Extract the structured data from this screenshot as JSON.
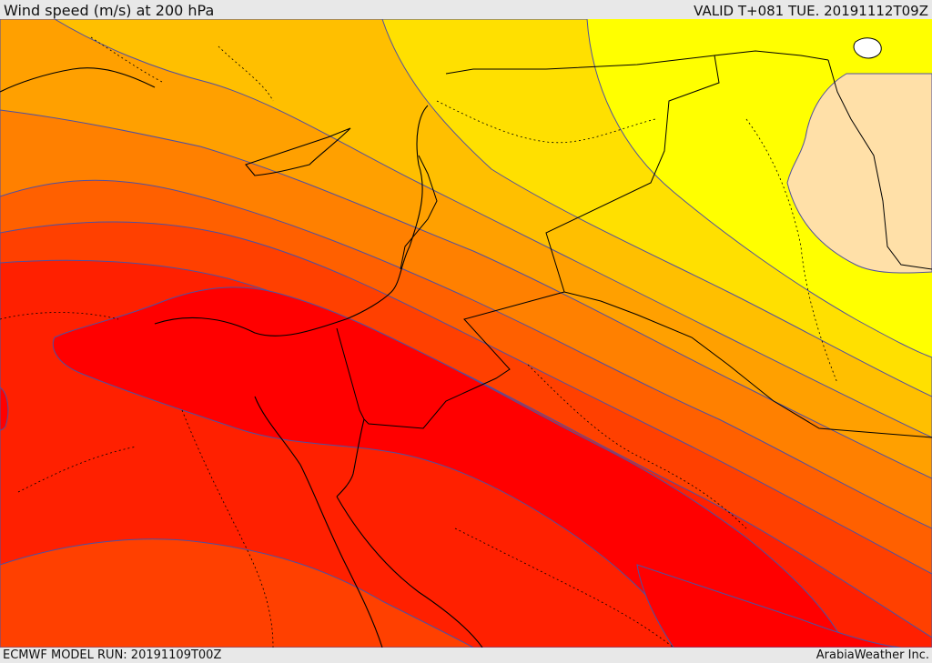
{
  "header": {
    "title": "Wind speed (m/s) at 200 hPa",
    "valid_time": "VALID T+081 TUE. 20191112T09Z"
  },
  "footer": {
    "model_run": "ECMWF MODEL RUN: 20191109T00Z",
    "provider": "ArabiaWeather Inc."
  },
  "map": {
    "field": "wind speed at 200 hPa",
    "colors": {
      "land_pale": "#ffe0a8",
      "band_1": "#ffff00",
      "band_2": "#ffe000",
      "band_3": "#ffbf00",
      "band_4": "#ffa000",
      "band_5": "#ff8000",
      "band_6": "#ff6000",
      "band_7": "#ff4000",
      "band_8": "#ff2000",
      "band_9": "#ff0000",
      "contour": "#5050a0",
      "coast": "#000000",
      "border": "#000000"
    }
  }
}
